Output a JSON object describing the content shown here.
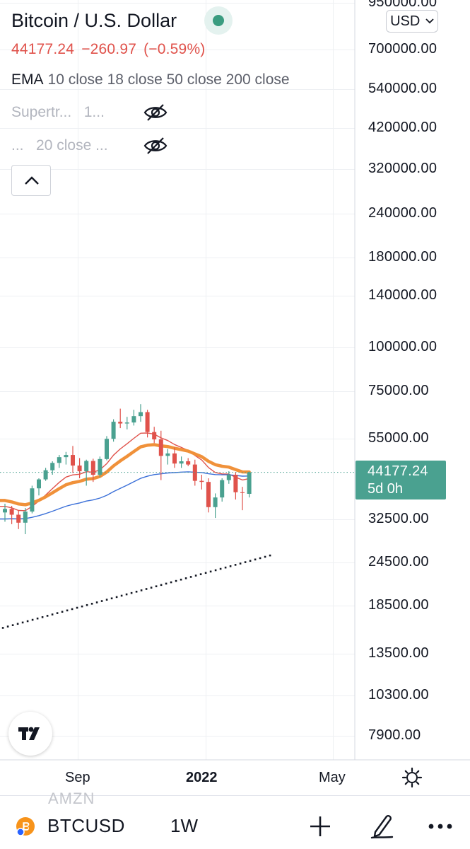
{
  "header": {
    "title": "Bitcoin / U.S. Dollar",
    "currency": "USD",
    "price": "44177.24",
    "change": "−260.97",
    "change_pct": "(−0.59%)"
  },
  "indicators": {
    "ema_name": "EMA",
    "ema_args": "10 close 18 close 50 close 200 close",
    "supertrend_label": "Supertr...",
    "supertrend_args": "1...",
    "hidden2_label": "...",
    "hidden2_args": "20 close ..."
  },
  "price_scale": {
    "labels": [
      "950000.00",
      "700000.00",
      "540000.00",
      "420000.00",
      "320000.00",
      "240000.00",
      "180000.00",
      "140000.00",
      "100000.00",
      "75000.00",
      "55000.00",
      "32500.00",
      "24500.00",
      "18500.00",
      "13500.00",
      "10300.00",
      "7900.00"
    ]
  },
  "current_price_tag": {
    "price": "44177.24",
    "countdown": "5d 0h"
  },
  "time_scale": {
    "labels": [
      "Sep",
      "2022",
      "May"
    ]
  },
  "bottom_bar": {
    "ghost_text": "AMZN",
    "symbol": "BTCUSD",
    "interval": "1W"
  },
  "colors": {
    "up": "#4aa190",
    "down": "#e0524b",
    "ema10": "#e0524b",
    "ema18": "#f0913a",
    "ema50": "#3a6fd8",
    "ema200": "#131722"
  },
  "chart_data": {
    "type": "candlestick",
    "symbol": "BTCUSD",
    "interval": "1W",
    "scale": "log",
    "y_ticks": [
      950000,
      700000,
      540000,
      420000,
      320000,
      240000,
      180000,
      140000,
      100000,
      75000,
      55000,
      32500,
      24500,
      18500,
      13500,
      10300,
      7900
    ],
    "x_ticks": [
      "Sep",
      "2022",
      "May"
    ],
    "candles": [
      {
        "o": 34000,
        "h": 36000,
        "l": 32000,
        "c": 34800
      },
      {
        "o": 34800,
        "h": 35500,
        "l": 31500,
        "c": 33500
      },
      {
        "o": 33500,
        "h": 34500,
        "l": 30500,
        "c": 31800
      },
      {
        "o": 31800,
        "h": 35000,
        "l": 29500,
        "c": 34200
      },
      {
        "o": 34200,
        "h": 40500,
        "l": 33800,
        "c": 39800
      },
      {
        "o": 39800,
        "h": 42500,
        "l": 38000,
        "c": 42200
      },
      {
        "o": 42200,
        "h": 45500,
        "l": 41800,
        "c": 44800
      },
      {
        "o": 44800,
        "h": 47500,
        "l": 43500,
        "c": 47000
      },
      {
        "o": 47000,
        "h": 49500,
        "l": 45500,
        "c": 48800
      },
      {
        "o": 48800,
        "h": 50500,
        "l": 46500,
        "c": 49500
      },
      {
        "o": 49500,
        "h": 52500,
        "l": 44000,
        "c": 46200
      },
      {
        "o": 46200,
        "h": 48500,
        "l": 42500,
        "c": 44500
      },
      {
        "o": 44500,
        "h": 48000,
        "l": 40500,
        "c": 47600
      },
      {
        "o": 47600,
        "h": 48300,
        "l": 41500,
        "c": 43500
      },
      {
        "o": 43500,
        "h": 49000,
        "l": 42800,
        "c": 48200
      },
      {
        "o": 48200,
        "h": 56000,
        "l": 47800,
        "c": 55000
      },
      {
        "o": 55000,
        "h": 62500,
        "l": 54000,
        "c": 61500
      },
      {
        "o": 61500,
        "h": 67000,
        "l": 59000,
        "c": 60800
      },
      {
        "o": 60800,
        "h": 63500,
        "l": 58500,
        "c": 61200
      },
      {
        "o": 61200,
        "h": 66500,
        "l": 60000,
        "c": 63800
      },
      {
        "o": 63800,
        "h": 69000,
        "l": 61500,
        "c": 65500
      },
      {
        "o": 65500,
        "h": 66500,
        "l": 55500,
        "c": 57500
      },
      {
        "o": 57500,
        "h": 59500,
        "l": 53500,
        "c": 54800
      },
      {
        "o": 54800,
        "h": 58000,
        "l": 42000,
        "c": 49200
      },
      {
        "o": 49200,
        "h": 51500,
        "l": 46500,
        "c": 50000
      },
      {
        "o": 50000,
        "h": 52000,
        "l": 45500,
        "c": 46800
      },
      {
        "o": 46800,
        "h": 49000,
        "l": 45500,
        "c": 47500
      },
      {
        "o": 47500,
        "h": 48500,
        "l": 46000,
        "c": 46500
      },
      {
        "o": 46500,
        "h": 48000,
        "l": 40500,
        "c": 41800
      },
      {
        "o": 41800,
        "h": 43500,
        "l": 39500,
        "c": 41500
      },
      {
        "o": 41500,
        "h": 42500,
        "l": 34000,
        "c": 35200
      },
      {
        "o": 35200,
        "h": 38500,
        "l": 32800,
        "c": 37500
      },
      {
        "o": 37500,
        "h": 42500,
        "l": 36500,
        "c": 42000
      },
      {
        "o": 42000,
        "h": 44500,
        "l": 41000,
        "c": 43500
      },
      {
        "o": 43500,
        "h": 44300,
        "l": 37000,
        "c": 38800
      },
      {
        "o": 38800,
        "h": 40200,
        "l": 34500,
        "c": 38600
      },
      {
        "o": 38400,
        "h": 44400,
        "l": 37500,
        "c": 44177.24
      }
    ],
    "series": [
      {
        "name": "EMA 10 close"
      },
      {
        "name": "EMA 18 close"
      },
      {
        "name": "EMA 50 close"
      },
      {
        "name": "EMA 200 close"
      }
    ],
    "last_price": 44177.24,
    "change": -260.97,
    "change_pct": -0.59
  }
}
